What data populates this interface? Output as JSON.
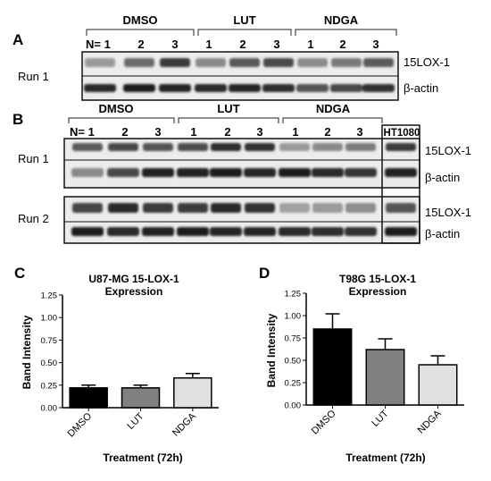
{
  "panelA": {
    "letter": "A",
    "groups": [
      "DMSO",
      "LUT",
      "NDGA"
    ],
    "lane_labels": [
      "N= 1",
      "2",
      "3",
      "1",
      "2",
      "3",
      "1",
      "2",
      "3"
    ],
    "run_label": "Run 1",
    "bands": [
      "15LOX-1",
      "β-actin"
    ]
  },
  "panelB": {
    "letter": "B",
    "groups": [
      "DMSO",
      "LUT",
      "NDGA"
    ],
    "lane_labels": [
      "N= 1",
      "2",
      "3",
      "1",
      "2",
      "3",
      "1",
      "2",
      "3"
    ],
    "control_label": "HT1080",
    "runs": [
      "Run 1",
      "Run 2"
    ],
    "bands": [
      "15LOX-1",
      "β-actin"
    ]
  },
  "chart_data": [
    {
      "panel": "C",
      "type": "bar",
      "title_line1": "U87-MG 15-LOX-1",
      "title_line2": "Expression",
      "ylabel": "Band Intensity",
      "xlabel": "Treatment (72h)",
      "categories": [
        "DMSO",
        "LUT",
        "NDGA"
      ],
      "values": [
        0.22,
        0.22,
        0.33
      ],
      "errors": [
        0.03,
        0.03,
        0.05
      ],
      "bar_colors": [
        "#000000",
        "#808080",
        "#e0e0e0"
      ],
      "ylim": [
        0,
        1.25
      ],
      "yticks": [
        "0.00",
        "0.25",
        "0.50",
        "0.75",
        "1.00",
        "1.25"
      ]
    },
    {
      "panel": "D",
      "type": "bar",
      "title_line1": "T98G 15-LOX-1",
      "title_line2": "Expression",
      "ylabel": "Band Intensity",
      "xlabel": "Treatment (72h)",
      "categories": [
        "DMSO",
        "LUT",
        "NDGA"
      ],
      "values": [
        0.85,
        0.62,
        0.45
      ],
      "errors": [
        0.17,
        0.12,
        0.1
      ],
      "bar_colors": [
        "#000000",
        "#808080",
        "#e0e0e0"
      ],
      "ylim": [
        0,
        1.25
      ],
      "yticks": [
        "0.00",
        "0.25",
        "0.50",
        "0.75",
        "1.00",
        "1.25"
      ]
    }
  ]
}
